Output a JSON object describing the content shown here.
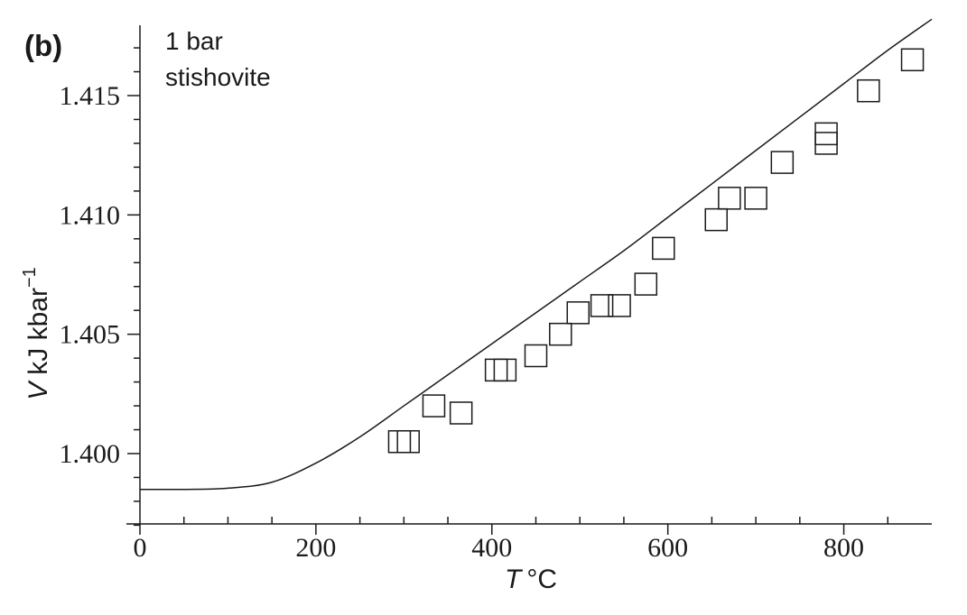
{
  "chart_data": {
    "type": "scatter",
    "panel_label": "(b)",
    "annotation": [
      "1 bar",
      "stishovite"
    ],
    "xlabel": {
      "symbol": "T",
      "unit": "°C"
    },
    "ylabel": {
      "symbol": "V",
      "unit": "kJ kbar",
      "exponent": "−1"
    },
    "xlim": [
      0,
      900
    ],
    "ylim": [
      1.397,
      1.4175
    ],
    "xticks": [
      0,
      200,
      400,
      600,
      800
    ],
    "xticks_minor": [
      50,
      100,
      150,
      250,
      300,
      350,
      450,
      500,
      550,
      650,
      700,
      750,
      850
    ],
    "yticks": [
      1.4,
      1.405,
      1.41,
      1.415
    ],
    "ytick_labels": [
      "1.400",
      "1.405",
      "1.410",
      "1.415"
    ],
    "yticks_minor": [
      1.397,
      1.398,
      1.399,
      1.401,
      1.402,
      1.403,
      1.404,
      1.406,
      1.407,
      1.408,
      1.409,
      1.411,
      1.412,
      1.413,
      1.414,
      1.416,
      1.417
    ],
    "grid": false,
    "series": [
      {
        "kind": "markers",
        "marker": "open-square",
        "x": [
          295,
          305,
          334,
          365,
          405,
          415,
          450,
          478,
          498,
          525,
          545,
          575,
          595,
          655,
          670,
          700,
          730,
          780,
          780,
          828,
          878
        ],
        "y": [
          1.4005,
          1.4005,
          1.402,
          1.4017,
          1.4035,
          1.4035,
          1.4041,
          1.405,
          1.4059,
          1.4062,
          1.4062,
          1.4071,
          1.4086,
          1.4098,
          1.4107,
          1.4107,
          1.4122,
          1.4134,
          1.413,
          1.4152,
          1.4165
        ]
      },
      {
        "kind": "line",
        "x": [
          0,
          50,
          100,
          150,
          200,
          250,
          300,
          350,
          400,
          450,
          500,
          550,
          600,
          650,
          700,
          750,
          800,
          850,
          900
        ],
        "y": [
          1.3985,
          1.3985,
          1.39855,
          1.3988,
          1.3996,
          1.4007,
          1.402,
          1.4033,
          1.4046,
          1.4059,
          1.4072,
          1.4085,
          1.4099,
          1.4113,
          1.4127,
          1.4141,
          1.4155,
          1.4169,
          1.4182
        ]
      }
    ]
  }
}
